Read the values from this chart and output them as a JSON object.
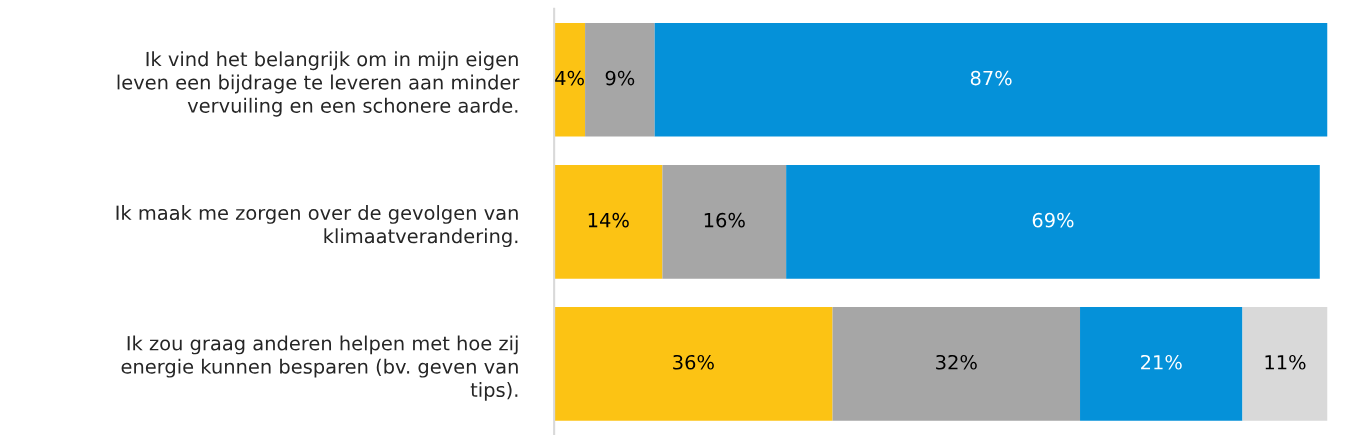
{
  "chart_data": {
    "type": "bar",
    "orientation": "horizontal",
    "stacked": true,
    "data_labels": true,
    "grid": false,
    "legend": false,
    "categories": [
      "Ik vind het belangrijk om in mijn eigen\nleven een bijdrage te leveren aan minder\nvervuiling en een schonere aarde.",
      "Ik maak me zorgen over de gevolgen van\nklimaatverandering.",
      "Ik zou graag anderen helpen met hoe zij\nenergie kunnen besparen (bv. geven van\ntips)."
    ],
    "series": [
      {
        "color": "#fcc314",
        "values": [
          4,
          14,
          36
        ],
        "value_labels": [
          "4%",
          "14%",
          "36%"
        ]
      },
      {
        "color": "#a6a6a6",
        "values": [
          9,
          16,
          32
        ],
        "value_labels": [
          "9%",
          "16%",
          "32%"
        ]
      },
      {
        "color": "#0591d9",
        "values": [
          87,
          69,
          21
        ],
        "value_labels": [
          "87%",
          "69%",
          "21%"
        ]
      },
      {
        "color": "#d9d9d9",
        "values": [
          null,
          null,
          11
        ],
        "value_labels": [
          null,
          null,
          "11%"
        ]
      }
    ]
  }
}
